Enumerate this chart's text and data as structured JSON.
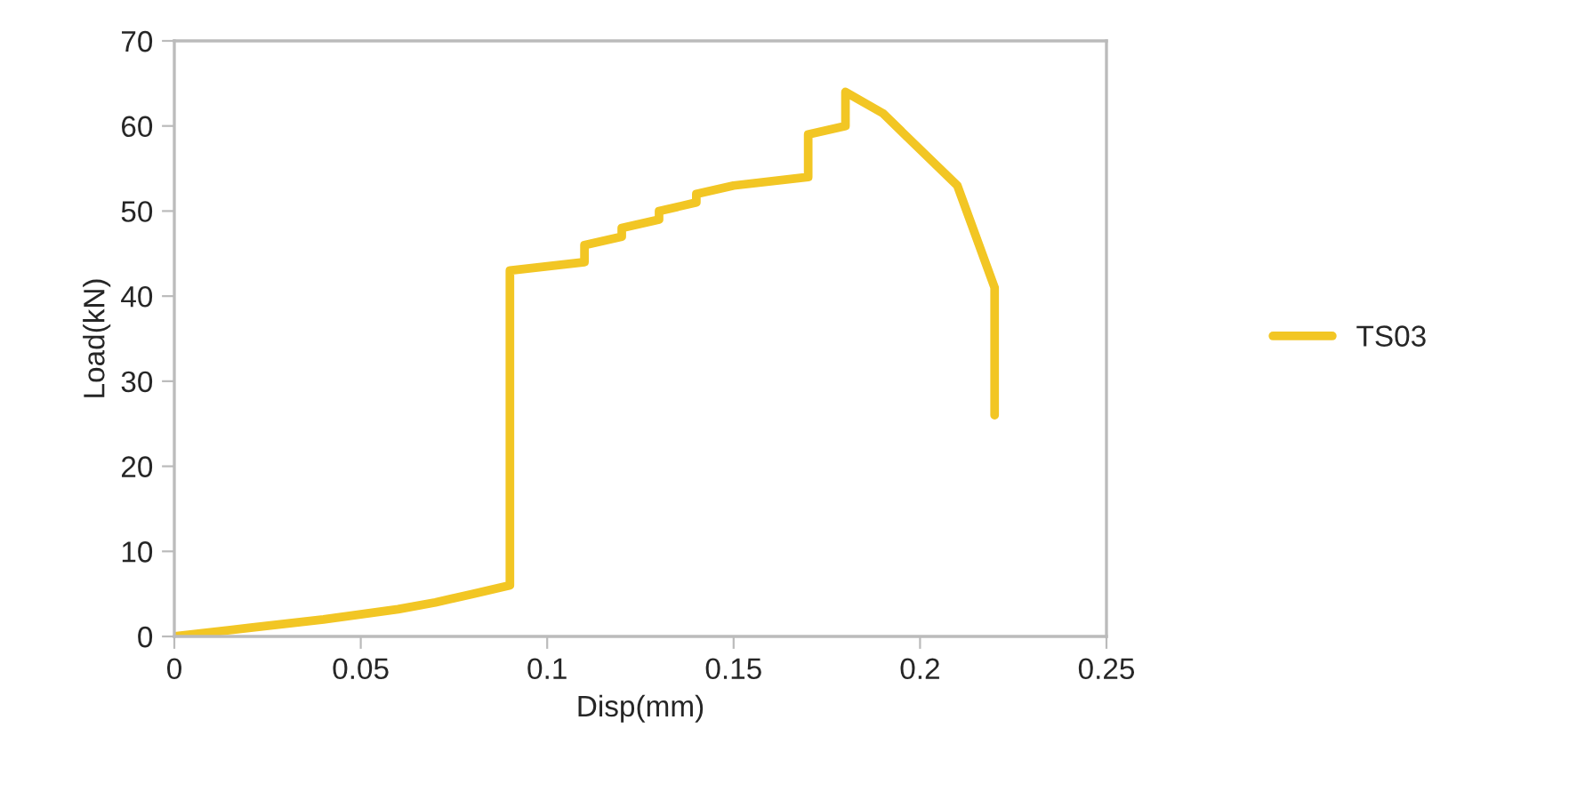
{
  "chart_data": {
    "type": "line",
    "xlabel": "Disp(mm)",
    "ylabel": "Load(kN)",
    "series": [
      {
        "name": "TS03",
        "color": "#f2c624",
        "x": [
          0,
          0.02,
          0.04,
          0.06,
          0.07,
          0.08,
          0.09,
          0.09,
          0.1,
          0.11,
          0.11,
          0.12,
          0.12,
          0.13,
          0.13,
          0.14,
          0.14,
          0.15,
          0.17,
          0.17,
          0.18,
          0.18,
          0.19,
          0.21,
          0.22,
          0.22
        ],
        "values": [
          0,
          1,
          2,
          3.2,
          4,
          5,
          6,
          43,
          43.5,
          44,
          46,
          47,
          48,
          49,
          50,
          51,
          52,
          53,
          54,
          59,
          60,
          64,
          61.5,
          53,
          41,
          26
        ]
      }
    ],
    "xlim": [
      0,
      0.25
    ],
    "xticks": [
      0,
      0.05,
      0.1,
      0.15,
      0.2,
      0.25
    ],
    "ylim": [
      0,
      70
    ],
    "yticks": [
      0,
      10,
      20,
      30,
      40,
      50,
      60,
      70
    ],
    "grid": false,
    "legend": "right",
    "marker": "none",
    "line_style": "solid"
  }
}
